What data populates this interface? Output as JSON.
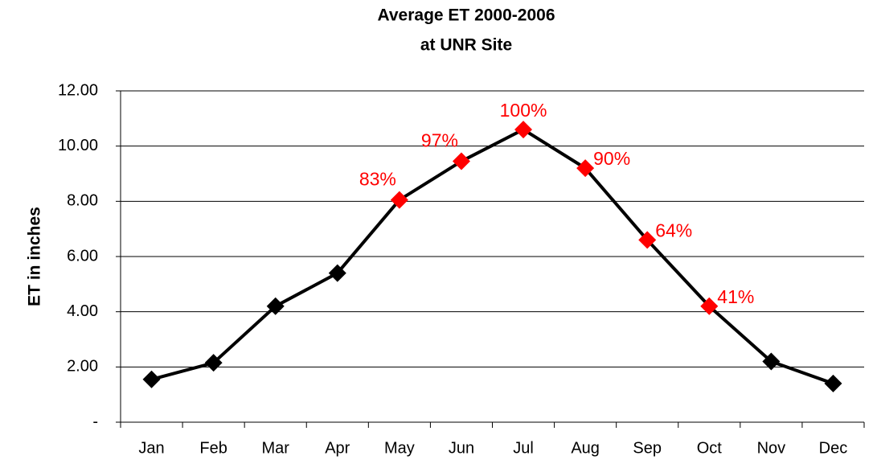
{
  "chart_data": {
    "type": "line",
    "title": "Average ET 2000-2006",
    "subtitle": "at UNR Site",
    "y_label": "ET in inches",
    "categories": [
      "Jan",
      "Feb",
      "Mar",
      "Apr",
      "May",
      "Jun",
      "Jul",
      "Aug",
      "Sep",
      "Oct",
      "Nov",
      "Dec"
    ],
    "values": [
      1.55,
      2.15,
      4.2,
      5.4,
      8.05,
      9.45,
      10.6,
      9.2,
      6.6,
      4.2,
      2.2,
      1.4
    ],
    "color": "#000000",
    "marker_colors": [
      "#000000",
      "#000000",
      "#000000",
      "#000000",
      "#ff0000",
      "#ff0000",
      "#ff0000",
      "#ff0000",
      "#ff0000",
      "#ff0000",
      "#000000",
      "#000000"
    ],
    "point_labels": [
      null,
      null,
      null,
      null,
      "83%",
      "97%",
      "100%",
      "90%",
      "64%",
      "41%",
      null,
      null
    ],
    "point_label_color": "#ff0000",
    "ylim": [
      0,
      12
    ],
    "yticks": [
      {
        "value": 0,
        "label": "-"
      },
      {
        "value": 2,
        "label": "2.00"
      },
      {
        "value": 4,
        "label": "4.00"
      },
      {
        "value": 6,
        "label": "6.00"
      },
      {
        "value": 8,
        "label": "8.00"
      },
      {
        "value": 10,
        "label": "10.00"
      },
      {
        "value": 12,
        "label": "12.00"
      }
    ],
    "grid": true
  }
}
